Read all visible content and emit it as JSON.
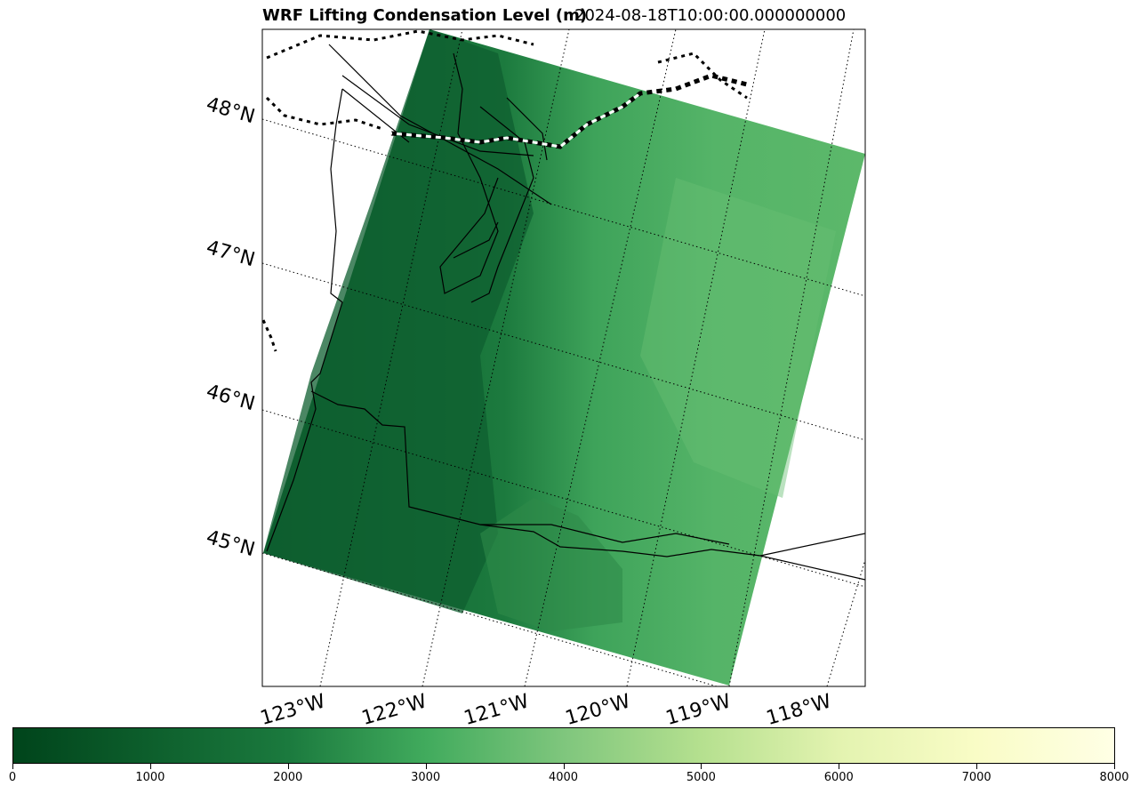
{
  "title": "WRF Lifting Condensation Level (m)",
  "time": "2024-08-18T10:00:00.000000000",
  "lat_labels": [
    "48°N",
    "47°N",
    "46°N",
    "45°N"
  ],
  "lon_labels": [
    "123°W",
    "122°W",
    "121°W",
    "120°W",
    "119°W",
    "118°W"
  ],
  "colorbar": {
    "colormap": "YlGn_r",
    "range": [
      0,
      8000
    ],
    "ticks": [
      "0",
      "1000",
      "2000",
      "3000",
      "4000",
      "5000",
      "6000",
      "7000",
      "8000"
    ]
  },
  "colors": {
    "dark_green": "#00441b",
    "mid_green": "#41ab5d",
    "light_green": "#7fc67d",
    "pale_yellow": "#ffffe5"
  }
}
